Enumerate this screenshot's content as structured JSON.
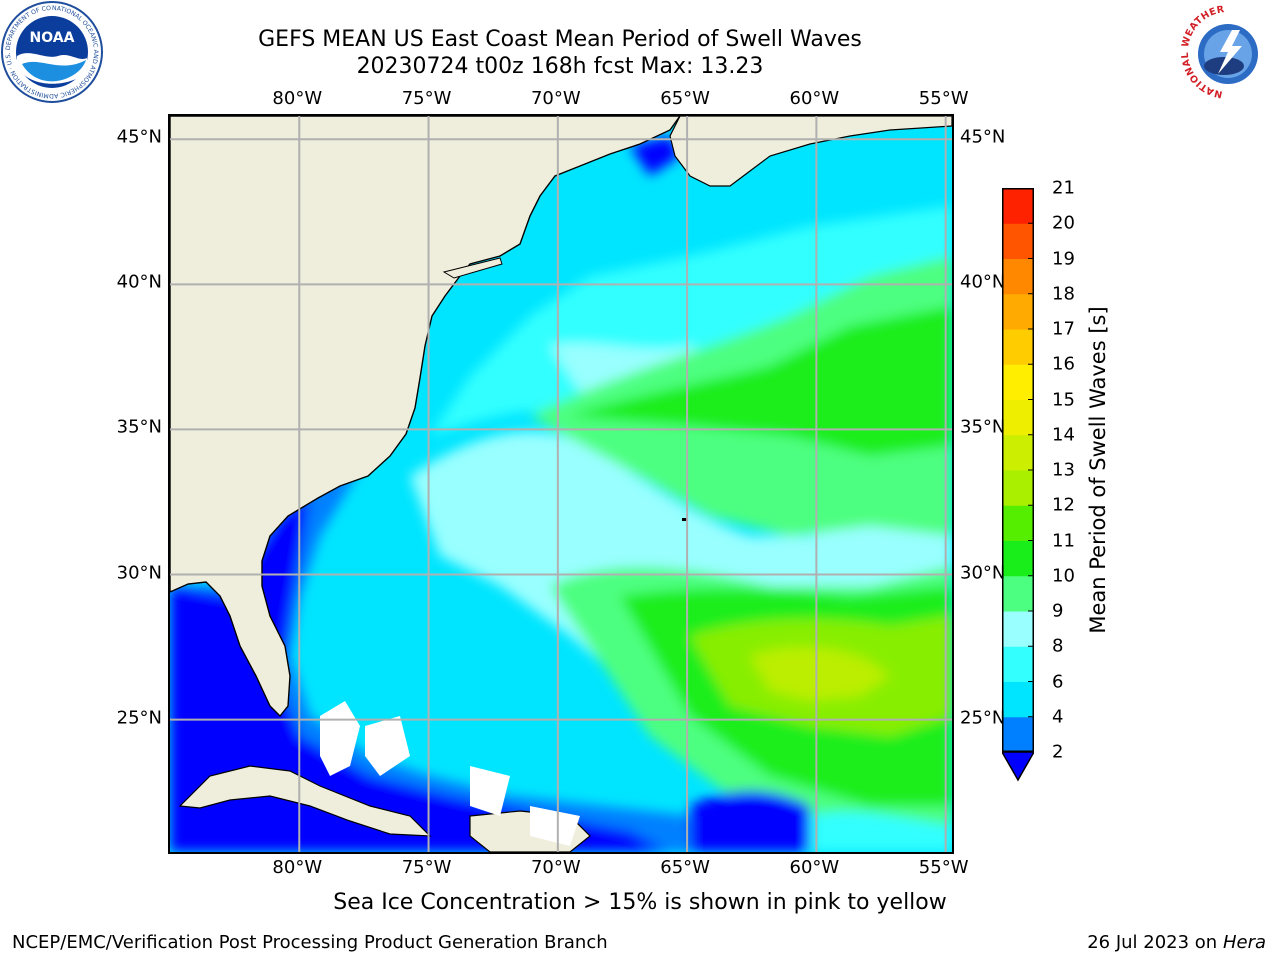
{
  "header": {
    "title_line1": "GEFS MEAN US East Coast Mean Period of Swell Waves",
    "title_line2": "20230724 t00z 168h fcst   Max: 13.23"
  },
  "logos": {
    "left": {
      "text": "NOAA",
      "icon": "noaa-logo-icon",
      "ring_text": "NATIONAL OCEANIC AND ATMOSPHERIC ADMINISTRATION · U.S. DEPARTMENT OF COMMERCE"
    },
    "right": {
      "icon": "nws-logo-icon",
      "ring_text": "NATIONAL WEATHER SERVICE"
    }
  },
  "map": {
    "lon_labels": [
      "80°W",
      "75°W",
      "70°W",
      "65°W",
      "60°W",
      "55°W"
    ],
    "lat_labels": [
      "45°N",
      "40°N",
      "35°N",
      "30°N",
      "25°N"
    ],
    "extent": {
      "lon_min": -85,
      "lon_max": -54.6,
      "lat_min": 20.3,
      "lat_max": 45.8
    },
    "land_color": "#efeedc",
    "grid_color": "#b0b0b0"
  },
  "colorbar": {
    "label": "Mean Period of Swell Waves [s]",
    "ticks": [
      "2",
      "4",
      "6",
      "8",
      "9",
      "10",
      "11",
      "12",
      "13",
      "14",
      "15",
      "16",
      "17",
      "18",
      "19",
      "20",
      "21"
    ],
    "colors": [
      "#0000ff",
      "#0080ff",
      "#00e5ff",
      "#33ffff",
      "#99ffff",
      "#4dff80",
      "#1aee1a",
      "#55ee00",
      "#aaee00",
      "#ccee00",
      "#eeee00",
      "#ffee00",
      "#ffcc00",
      "#ffaa00",
      "#ff8800",
      "#ff5500",
      "#ff2200",
      "#ff0000"
    ]
  },
  "footer": {
    "note": "Sea Ice Concentration > 15% is shown in pink to yellow",
    "left": "NCEP/EMC/Verification Post Processing Product Generation Branch",
    "right_date": "26 Jul 2023 on ",
    "right_machine": "Hera"
  }
}
